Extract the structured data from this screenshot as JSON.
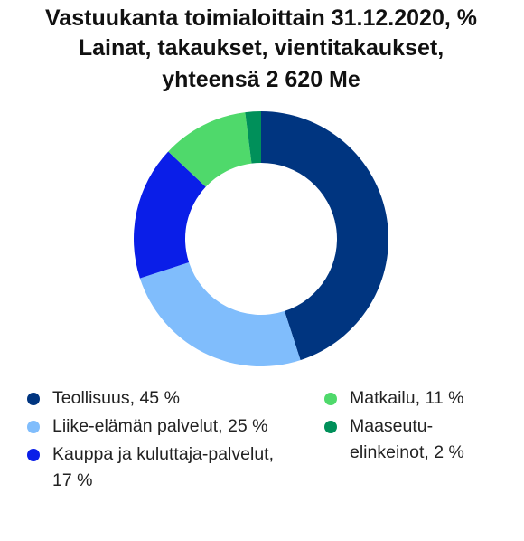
{
  "chart_data": {
    "type": "donut",
    "title": [
      "Vastuukanta toimialoittain 31.12.2020, %",
      "Lainat, takaukset, vientitakaukset,",
      "yhteensä 2 620 Me"
    ],
    "categories": [
      "Teollisuus, 45 %",
      "Liike-elämän palvelut, 25 %",
      "Kauppa ja kuluttaja-palvelut, 17 %",
      "Matkailu, 11 %",
      "Maaseutu-elinkeinot, 2 %"
    ],
    "values": [
      45,
      25,
      17,
      11,
      2
    ],
    "colors": [
      "#003580",
      "#80bdfc",
      "#0a1ee8",
      "#4fd96b",
      "#00905a"
    ]
  }
}
